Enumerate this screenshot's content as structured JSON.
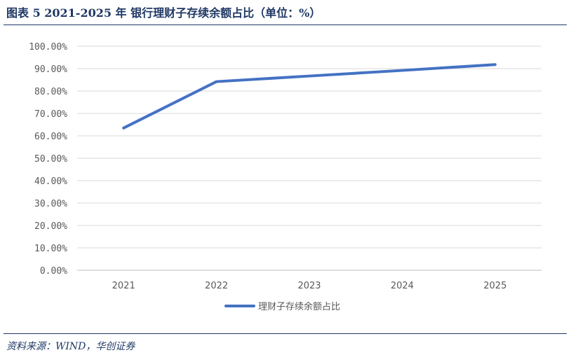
{
  "figure": {
    "title": "图表 5   2021-2025 年  银行理财子存续余额占比（单位：%）",
    "source": "资料来源：WIND，华创证券"
  },
  "chart_data": {
    "type": "line",
    "title": "",
    "xlabel": "",
    "ylabel": "",
    "x": [
      "2021",
      "2022",
      "2023",
      "2024",
      "2025"
    ],
    "series": [
      {
        "name": "理财子存续余额占比",
        "values": [
          63.5,
          84.2,
          86.7,
          89.2,
          91.8
        ],
        "color": "#4472c4"
      }
    ],
    "ylim": [
      0,
      100
    ],
    "yticks": [
      0,
      10,
      20,
      30,
      40,
      50,
      60,
      70,
      80,
      90,
      100
    ],
    "ytick_labels": [
      "0.00%",
      "10.00%",
      "20.00%",
      "30.00%",
      "40.00%",
      "50.00%",
      "60.00%",
      "70.00%",
      "80.00%",
      "90.00%",
      "100.00%"
    ],
    "grid": true,
    "legend_position": "bottom"
  }
}
